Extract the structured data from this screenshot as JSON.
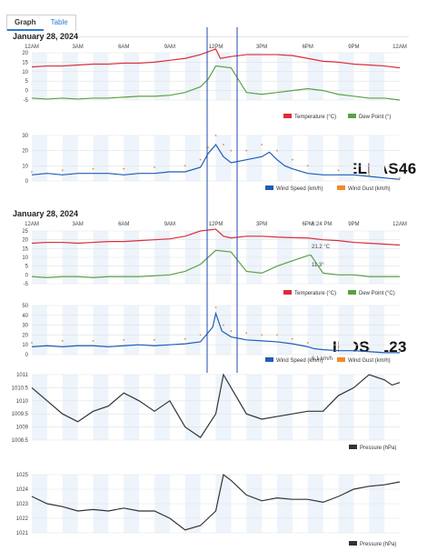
{
  "tabs": {
    "graph": "Graph",
    "table": "Table"
  },
  "colors": {
    "temperature": "#d92e3a",
    "dew_point": "#5aa145",
    "wind_speed": "#1f5db5",
    "wind_gust": "#f08a24",
    "pressure": "#333333",
    "marker": "#2349b3",
    "band": "#eef4fb"
  },
  "stations": [
    {
      "name": "IELPAS46",
      "date": "January 28, 2024"
    },
    {
      "name": "ILOSLL23",
      "date": "January 28, 2024",
      "time_readout": "6:24 PM",
      "temp_readout": "21.2 °C",
      "dew_readout": "11.3°",
      "wind_readout": "6.1 km/h"
    }
  ],
  "chart_data": [
    {
      "type": "line",
      "title": "",
      "x_ticks": [
        "12AM",
        "3AM",
        "6AM",
        "9AM",
        "12PM",
        "3PM",
        "6PM",
        "9PM",
        "12AM"
      ],
      "ylim": [
        -5,
        20
      ],
      "y_ticks": [
        20,
        15,
        10,
        5,
        0,
        -5
      ],
      "series": [
        {
          "name": "Temperature (°C)",
          "x": [
            0,
            1,
            2,
            3,
            4,
            5,
            6,
            7,
            8,
            9,
            10,
            11,
            12,
            12.3,
            13,
            14,
            15,
            16,
            17,
            18,
            19,
            20,
            21,
            22,
            23,
            24
          ],
          "values": [
            12.5,
            13,
            13,
            13.5,
            14,
            14,
            14.5,
            14.5,
            15,
            16,
            17,
            19,
            22,
            17,
            18,
            19,
            19,
            19,
            18.5,
            17,
            15.5,
            15,
            14,
            13.5,
            13,
            12
          ]
        },
        {
          "name": "Dew Point (°)",
          "x": [
            0,
            1,
            2,
            3,
            4,
            5,
            6,
            7,
            8,
            9,
            10,
            11,
            11.5,
            12,
            13,
            14,
            15,
            16,
            17,
            18,
            19,
            20,
            21,
            22,
            23,
            24
          ],
          "values": [
            -4,
            -4.5,
            -4,
            -4.5,
            -4,
            -4,
            -3.5,
            -3,
            -3,
            -2.5,
            -1,
            2,
            6,
            13,
            12,
            -1,
            -2,
            -1,
            0,
            1,
            0,
            -2,
            -3,
            -4,
            -4,
            -5
          ]
        }
      ]
    },
    {
      "type": "line",
      "title": "",
      "ylim": [
        0,
        30
      ],
      "y_ticks": [
        30,
        20,
        10,
        0
      ],
      "series": [
        {
          "name": "Wind Speed (km/h)",
          "x": [
            0,
            1,
            2,
            3,
            4,
            5,
            6,
            7,
            8,
            9,
            10,
            11,
            11.5,
            12,
            12.5,
            13,
            14,
            15,
            15.5,
            16,
            16.5,
            17,
            18,
            19,
            20,
            21,
            22,
            23,
            24
          ],
          "values": [
            4,
            5,
            4,
            5,
            5,
            5,
            4,
            5,
            5,
            6,
            6,
            9,
            18,
            24,
            16,
            12,
            14,
            16,
            19,
            14,
            10,
            8,
            5,
            4,
            4,
            4,
            3,
            2,
            1
          ]
        },
        {
          "name": "Wind Gust (km/h)",
          "x": [
            0,
            2,
            4,
            6,
            8,
            10,
            11,
            11.5,
            12,
            12.5,
            13,
            14,
            15,
            16,
            17,
            18,
            20,
            22,
            24
          ],
          "values": [
            6,
            7,
            8,
            8,
            9,
            10,
            14,
            22,
            30,
            24,
            20,
            20,
            24,
            20,
            14,
            10,
            7,
            4,
            2
          ]
        }
      ]
    },
    {
      "type": "line",
      "title": "",
      "x_ticks": [
        "12AM",
        "3AM",
        "6AM",
        "9AM",
        "12PM",
        "3PM",
        "6PM",
        "9PM",
        "12AM"
      ],
      "ylim": [
        -5,
        25
      ],
      "y_ticks": [
        25,
        20,
        15,
        10,
        5,
        0,
        -5
      ],
      "series": [
        {
          "name": "Temperature (°C)",
          "x": [
            0,
            1,
            2,
            3,
            4,
            5,
            6,
            7,
            8,
            9,
            10,
            11,
            12,
            12.5,
            13,
            14,
            15,
            16,
            17,
            18,
            19,
            20,
            21,
            22,
            23,
            24
          ],
          "values": [
            18,
            18.5,
            18.5,
            18,
            18.5,
            19,
            19,
            19.5,
            20,
            20.5,
            22,
            25,
            26,
            22,
            21,
            22,
            22,
            21.5,
            21.2,
            21,
            20,
            19.5,
            18.5,
            18,
            17.5,
            17
          ]
        },
        {
          "name": "Dew Point (°C)",
          "x": [
            0,
            1,
            2,
            3,
            4,
            5,
            6,
            7,
            8,
            9,
            10,
            11,
            12,
            13,
            14,
            15,
            16,
            17,
            18,
            18.2,
            19,
            20,
            21,
            22,
            23,
            24
          ],
          "values": [
            -1,
            -1.5,
            -1,
            -1,
            -1.5,
            -1,
            -1,
            -1,
            -0.5,
            0,
            2,
            6,
            14,
            13,
            2,
            1,
            5,
            8,
            11,
            11.3,
            1,
            0,
            0,
            -1,
            -1,
            -1
          ]
        }
      ]
    },
    {
      "type": "line",
      "title": "",
      "ylim": [
        0,
        50
      ],
      "y_ticks": [
        50,
        40,
        30,
        20,
        10,
        0
      ],
      "series": [
        {
          "name": "Wind Speed (km/h)",
          "x": [
            0,
            1,
            2,
            3,
            4,
            5,
            6,
            7,
            8,
            9,
            10,
            11,
            11.8,
            12,
            12.4,
            13,
            14,
            15,
            16,
            17,
            18,
            18.4,
            19,
            20,
            21,
            22,
            23,
            24
          ],
          "values": [
            8,
            9,
            8,
            9,
            9,
            8,
            9,
            10,
            9,
            10,
            11,
            13,
            28,
            42,
            24,
            18,
            15,
            14,
            13,
            11,
            8,
            6.1,
            5,
            4,
            4,
            3,
            2,
            2
          ]
        },
        {
          "name": "Wind Gust (km/h)",
          "x": [
            0,
            2,
            4,
            6,
            8,
            10,
            11,
            12,
            12.5,
            13,
            14,
            15,
            16,
            17,
            18,
            20,
            22,
            24
          ],
          "values": [
            12,
            14,
            14,
            15,
            15,
            16,
            20,
            48,
            30,
            24,
            22,
            20,
            20,
            16,
            12,
            8,
            6,
            4
          ]
        }
      ]
    },
    {
      "type": "line",
      "title": "",
      "ylim": [
        1008.5,
        1011
      ],
      "y_ticks": [
        1011,
        1010.5,
        1010,
        1009.5,
        1009,
        1008.5
      ],
      "series": [
        {
          "name": "Pressure (hPa)",
          "x": [
            0,
            1,
            2,
            3,
            4,
            5,
            6,
            7,
            8,
            9,
            10,
            11,
            12,
            12.5,
            13,
            14,
            15,
            16,
            17,
            18,
            19,
            20,
            21,
            22,
            23,
            23.5,
            24
          ],
          "values": [
            1010.5,
            1010,
            1009.5,
            1009.2,
            1009.6,
            1009.8,
            1010.3,
            1010.0,
            1009.6,
            1010.0,
            1009.0,
            1008.6,
            1009.5,
            1011.0,
            1010.5,
            1009.5,
            1009.3,
            1009.4,
            1009.5,
            1009.6,
            1009.6,
            1010.2,
            1010.5,
            1011.0,
            1010.8,
            1010.6,
            1010.7
          ]
        }
      ]
    },
    {
      "type": "line",
      "title": "",
      "ylim": [
        1021,
        1025
      ],
      "y_ticks": [
        1025,
        1024,
        1023,
        1022,
        1021
      ],
      "series": [
        {
          "name": "Pressure (hPa)",
          "x": [
            0,
            1,
            2,
            3,
            4,
            5,
            6,
            7,
            8,
            9,
            10,
            11,
            12,
            12.5,
            13,
            14,
            15,
            16,
            17,
            18,
            19,
            20,
            21,
            22,
            23,
            24
          ],
          "values": [
            1023.5,
            1023.0,
            1022.8,
            1022.5,
            1022.6,
            1022.5,
            1022.7,
            1022.5,
            1022.5,
            1022.0,
            1021.2,
            1021.5,
            1022.5,
            1025.0,
            1024.6,
            1023.6,
            1023.2,
            1023.4,
            1023.3,
            1023.3,
            1023.1,
            1023.5,
            1024.0,
            1024.2,
            1024.3,
            1024.5
          ]
        }
      ]
    }
  ]
}
